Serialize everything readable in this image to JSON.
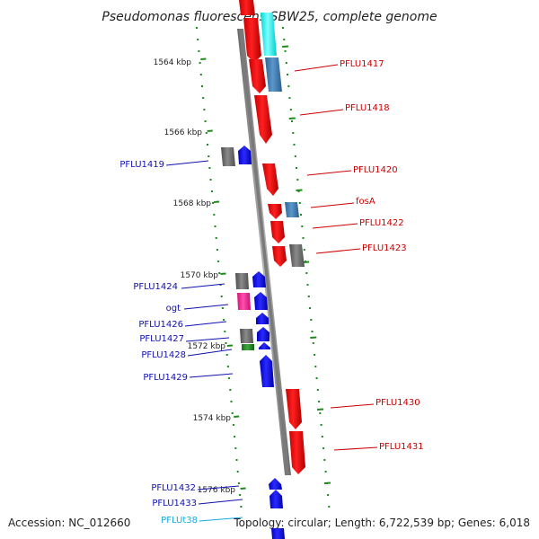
{
  "title": "Pseudomonas fluorescens SBW25, complete genome",
  "footer": {
    "accession": "Accession: NC_012660",
    "summary": "Topology: circular; Length: 6,722,539 bp; Genes: 6,018"
  },
  "ticks": [
    "1564 kbp",
    "1566 kbp",
    "1568 kbp",
    "1570 kbp",
    "1572 kbp",
    "1574 kbp",
    "1576 kbp"
  ],
  "labels_left": [
    "PFLU1419",
    "PFLU1424",
    "ogt",
    "PFLU1426",
    "PFLU1427",
    "PFLU1428",
    "PFLU1429",
    "PFLU1432",
    "PFLU1433"
  ],
  "labels_right": [
    "PFLU1417",
    "PFLU1418",
    "PFLU1420",
    "fosA",
    "PFLU1422",
    "PFLU1423",
    "PFLU1430",
    "PFLU1431"
  ],
  "label_trna": "PFLUt38",
  "colors": {
    "forward_cds": "#ff0000",
    "reverse_cds": "#0000ff",
    "gray_feature": "#6e6e6e",
    "steelblue_feature": "#4682b4",
    "cyan_feature": "#00ffff",
    "magenta_feature": "#ff1493",
    "green_feature": "#228b22",
    "backbone": "#808080",
    "trna_label": "#1aa8e0"
  }
}
